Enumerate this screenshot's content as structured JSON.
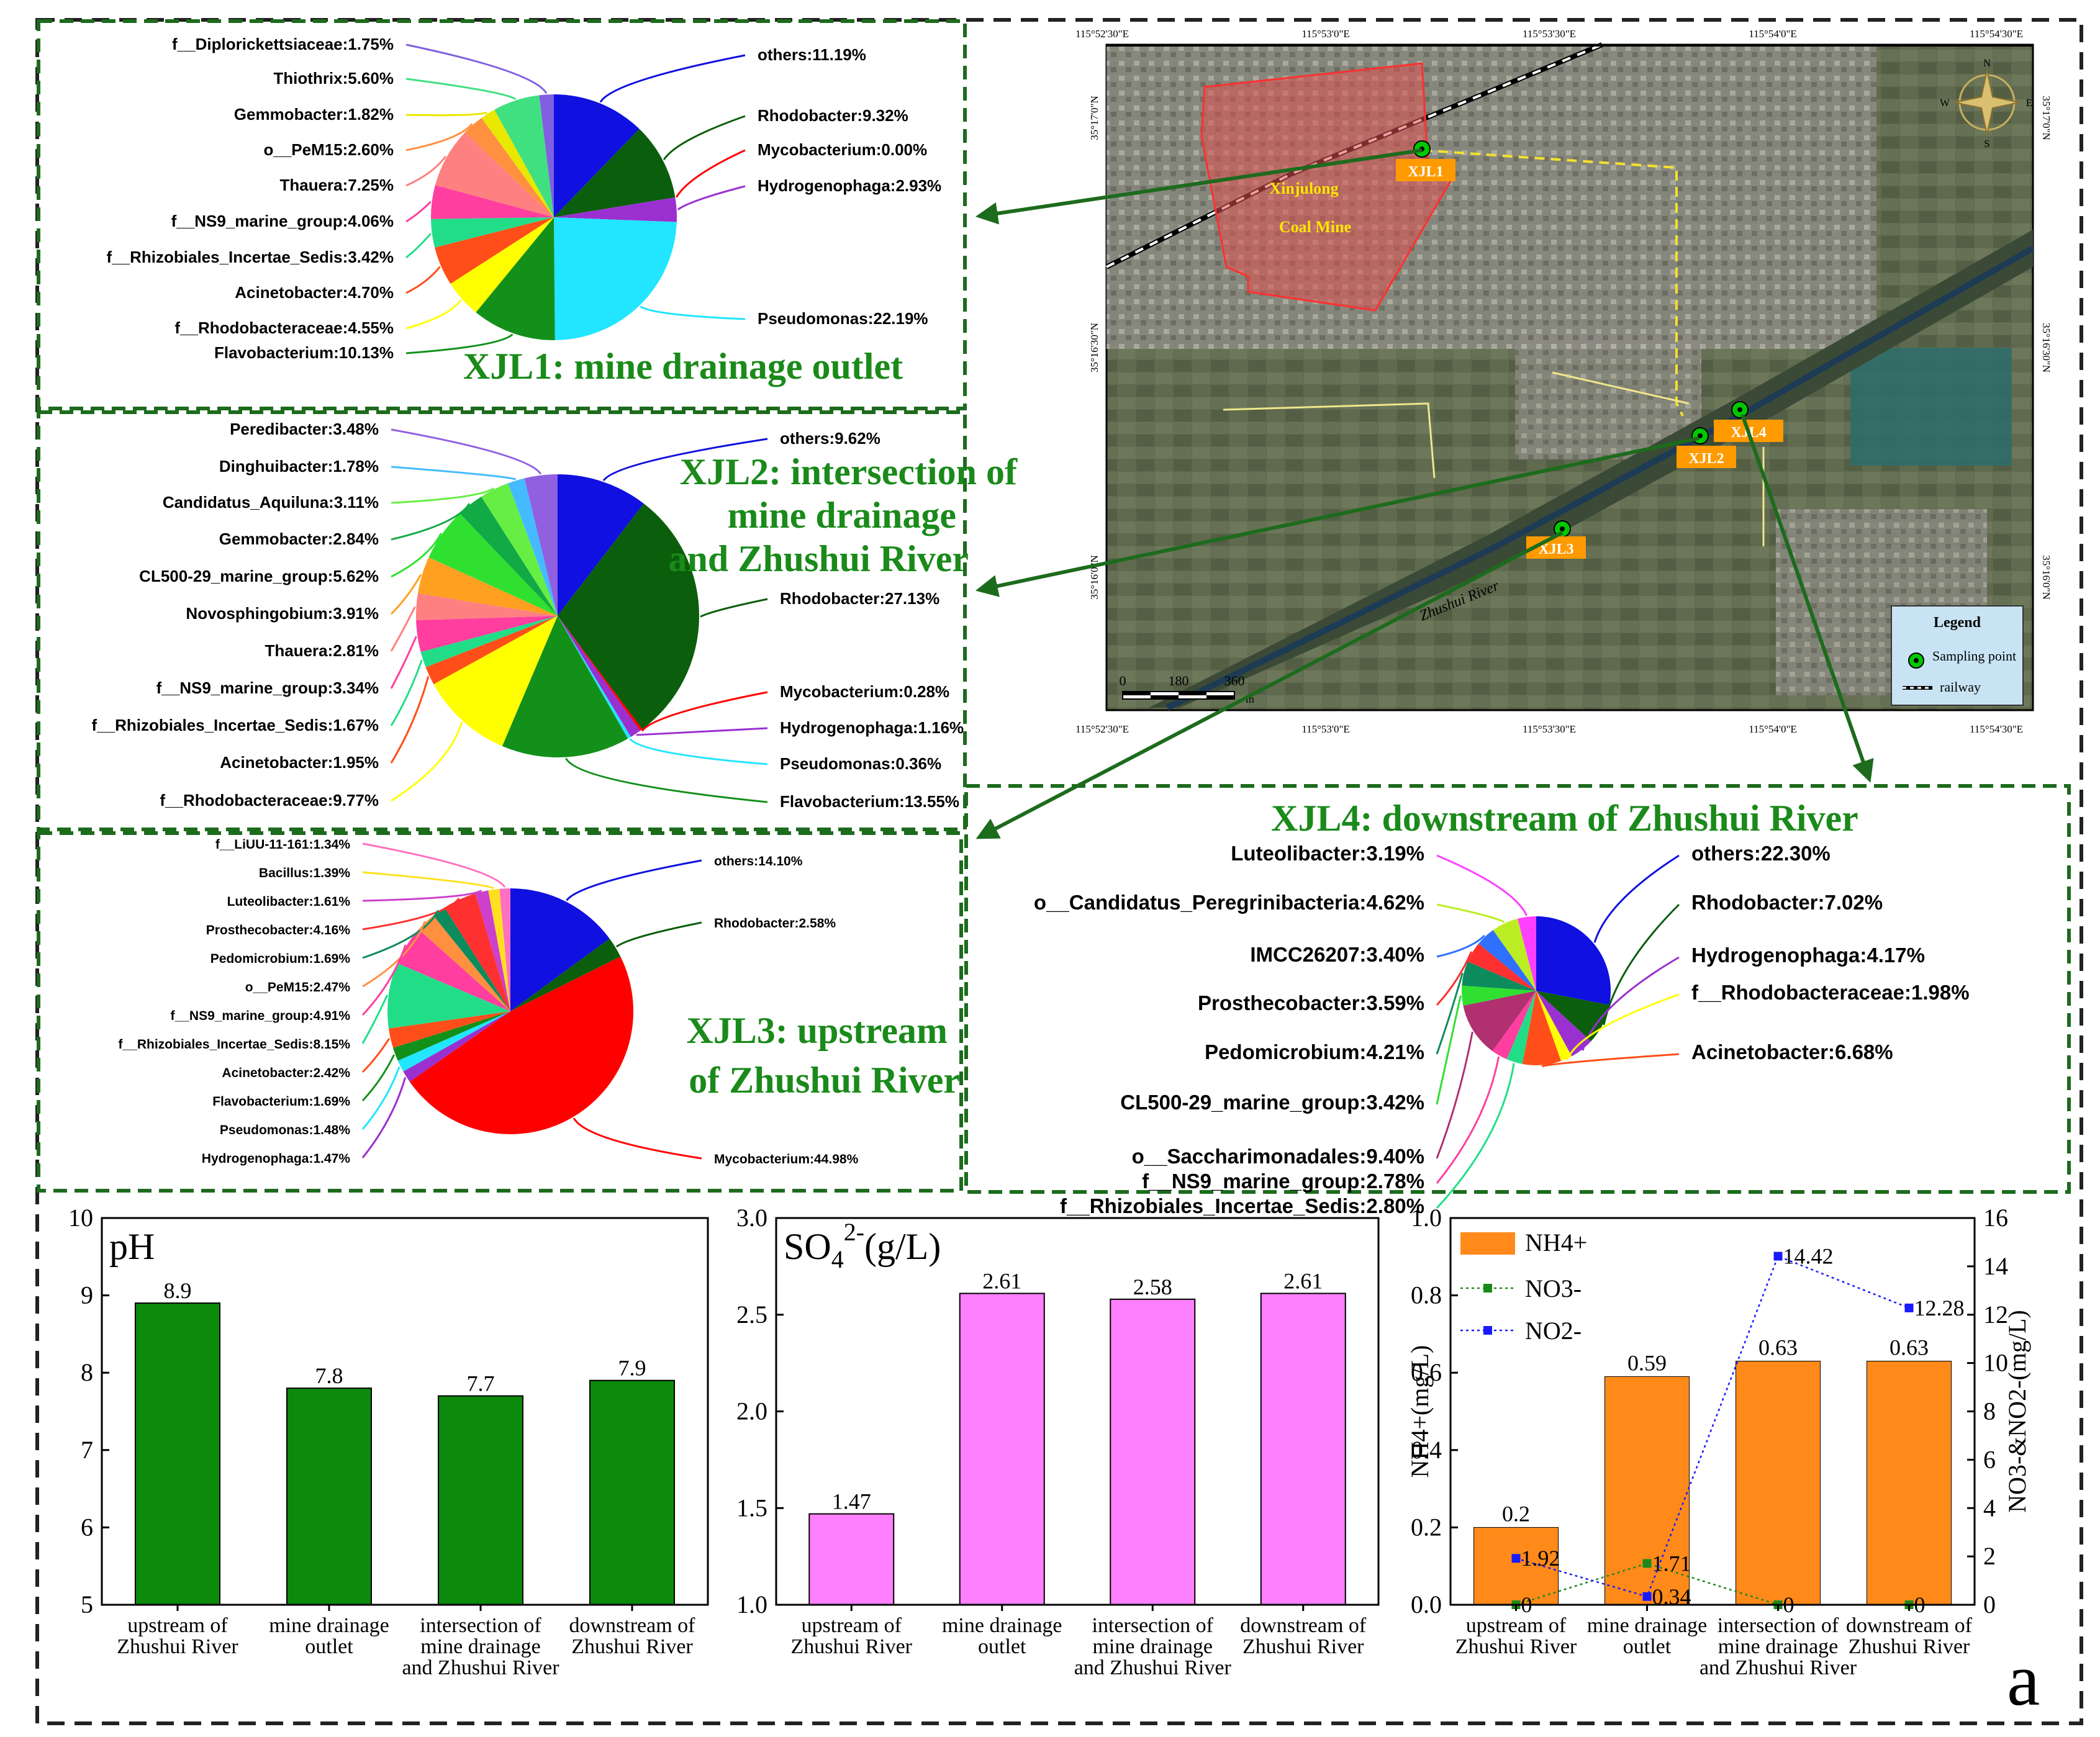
{
  "colors": {
    "dash_green": "#1d6b1d",
    "ph_bar": "#0b8a0b",
    "so4_bar": "#ff80ff",
    "nh4_bar": "#ff8a1a",
    "no3_line": "#1a8a1a",
    "no2_line": "#1a1aff",
    "arrow": "#1d6b1d",
    "title_green": "#1a8a1a"
  },
  "map": {
    "top_ticks": [
      "115°52'30\"E",
      "115°53'0\"E",
      "115°53'30\"E",
      "115°54'0\"E",
      "115°54'30\"E"
    ],
    "bottom_ticks": [
      "115°52'30\"E",
      "115°53'0\"E",
      "115°53'30\"E",
      "115°54'0\"E",
      "115°54'30\"E"
    ],
    "left_ticks": [
      "35°17'0\"N",
      "35°16'30\"N",
      "35°16'0\"N"
    ],
    "right_ticks": [
      "35°17'0\"N",
      "35°16'30\"N",
      "35°16'0\"N"
    ],
    "mine_label_1": "Xinjulong",
    "mine_label_2": "Coal Mine",
    "river_label": "Zhushui River",
    "points": [
      "XJL1",
      "XJL2",
      "XJL3",
      "XJL4"
    ],
    "scale": [
      "0",
      "180",
      "360"
    ],
    "scale_unit": "m",
    "legend_title": "Legend",
    "legend_point": "Sampling point",
    "legend_railway": "railway",
    "compass": [
      "N",
      "S",
      "W",
      "E"
    ]
  },
  "chart_data": [
    {
      "type": "pie",
      "title": "XJL1: mine drainage outlet",
      "slices": [
        {
          "label": "others:11.19%",
          "value": 11.19,
          "color": "#1010e0"
        },
        {
          "label": "Rhodobacter:9.32%",
          "value": 9.32,
          "color": "#0b5e0b"
        },
        {
          "label": "Mycobacterium:0.00%",
          "value": 0.0,
          "color": "#ff0000"
        },
        {
          "label": "Hydrogenophaga:2.93%",
          "value": 2.93,
          "color": "#9a30d0"
        },
        {
          "label": "Pseudomonas:22.19%",
          "value": 22.19,
          "color": "#22e5ff"
        },
        {
          "label": "Flavobacterium:10.13%",
          "value": 10.13,
          "color": "#12901a"
        },
        {
          "label": "f__Rhodobacteraceae:4.55%",
          "value": 4.55,
          "color": "#ffff00"
        },
        {
          "label": "Acinetobacter:4.70%",
          "value": 4.7,
          "color": "#ff4e1a"
        },
        {
          "label": "f__Rhizobiales_Incertae_Sedis:3.42%",
          "value": 3.42,
          "color": "#22dd88"
        },
        {
          "label": "f__NS9_marine_group:4.06%",
          "value": 4.06,
          "color": "#ff3ea0"
        },
        {
          "label": "Thauera:7.25%",
          "value": 7.25,
          "color": "#ff8080"
        },
        {
          "label": "o__PeM15:2.60%",
          "value": 2.6,
          "color": "#ff9040"
        },
        {
          "label": "Gemmobacter:1.82%",
          "value": 1.82,
          "color": "#e8e800"
        },
        {
          "label": "Thiothrix:5.60%",
          "value": 5.6,
          "color": "#40e080"
        },
        {
          "label": "f__Diplorickettsiaceae:1.75%",
          "value": 1.75,
          "color": "#8060e0"
        }
      ]
    },
    {
      "type": "pie",
      "title_lines": [
        "XJL2: intersection of",
        "mine drainage",
        "and Zhushui River"
      ],
      "slices": [
        {
          "label": "others:9.62%",
          "value": 9.62,
          "color": "#1010e0"
        },
        {
          "label": "Rhodobacter:27.13%",
          "value": 27.13,
          "color": "#0b5e0b"
        },
        {
          "label": "Mycobacterium:0.28%",
          "value": 0.28,
          "color": "#ff0000"
        },
        {
          "label": "Hydrogenophaga:1.16%",
          "value": 1.16,
          "color": "#9a30d0"
        },
        {
          "label": "Pseudomonas:0.36%",
          "value": 0.36,
          "color": "#22e5ff"
        },
        {
          "label": "Flavobacterium:13.55%",
          "value": 13.55,
          "color": "#12901a"
        },
        {
          "label": "f__Rhodobacteraceae:9.77%",
          "value": 9.77,
          "color": "#ffff00"
        },
        {
          "label": "Acinetobacter:1.95%",
          "value": 1.95,
          "color": "#ff4e1a"
        },
        {
          "label": "f__Rhizobiales_Incertae_Sedis:1.67%",
          "value": 1.67,
          "color": "#22dd88"
        },
        {
          "label": "f__NS9_marine_group:3.34%",
          "value": 3.34,
          "color": "#ff3ea0"
        },
        {
          "label": "Thauera:2.81%",
          "value": 2.81,
          "color": "#ff8080"
        },
        {
          "label": "Novosphingobium:3.91%",
          "value": 3.91,
          "color": "#ffa020"
        },
        {
          "label": "CL500-29_marine_group:5.62%",
          "value": 5.62,
          "color": "#30e030"
        },
        {
          "label": "Gemmobacter:2.84%",
          "value": 2.84,
          "color": "#11aa44"
        },
        {
          "label": "Candidatus_Aquiluna:3.11%",
          "value": 3.11,
          "color": "#66ee44"
        },
        {
          "label": "Dinghuibacter:1.78%",
          "value": 1.78,
          "color": "#44bbff"
        },
        {
          "label": "Peredibacter:3.48%",
          "value": 3.48,
          "color": "#9060e0"
        }
      ]
    },
    {
      "type": "pie",
      "title_lines": [
        "XJL3: upstream",
        "of Zhushui River"
      ],
      "slices": [
        {
          "label": "others:14.10%",
          "value": 14.1,
          "color": "#1010e0"
        },
        {
          "label": "Rhodobacter:2.58%",
          "value": 2.58,
          "color": "#0b5e0b"
        },
        {
          "label": "Mycobacterium:44.98%",
          "value": 44.98,
          "color": "#ff0000"
        },
        {
          "label": "Hydrogenophaga:1.47%",
          "value": 1.47,
          "color": "#9a30d0"
        },
        {
          "label": "Pseudomonas:1.48%",
          "value": 1.48,
          "color": "#22e5ff"
        },
        {
          "label": "Flavobacterium:1.69%",
          "value": 1.69,
          "color": "#12901a"
        },
        {
          "label": "Acinetobacter:2.42%",
          "value": 2.42,
          "color": "#ff4e1a"
        },
        {
          "label": "f__Rhizobiales_Incertae_Sedis:8.15%",
          "value": 8.15,
          "color": "#22dd88"
        },
        {
          "label": "f__NS9_marine_group:4.91%",
          "value": 4.91,
          "color": "#ff3ea0"
        },
        {
          "label": "o__PeM15:2.47%",
          "value": 2.47,
          "color": "#ff9040"
        },
        {
          "label": "Pedomicrobium:1.69%",
          "value": 1.69,
          "color": "#0c8c5c"
        },
        {
          "label": "Prosthecobacter:4.16%",
          "value": 4.16,
          "color": "#ff3030"
        },
        {
          "label": "Luteolibacter:1.61%",
          "value": 1.61,
          "color": "#cc40cc"
        },
        {
          "label": "Bacillus:1.39%",
          "value": 1.39,
          "color": "#ffe020"
        },
        {
          "label": "f__LiUU-11-161:1.34%",
          "value": 1.34,
          "color": "#ff70c0"
        }
      ]
    },
    {
      "type": "pie",
      "title": "XJL4: downstream of Zhushui River",
      "slices": [
        {
          "label": "others:22.30%",
          "value": 22.3,
          "color": "#1010e0"
        },
        {
          "label": "Rhodobacter:7.02%",
          "value": 7.02,
          "color": "#0b5e0b"
        },
        {
          "label": "Hydrogenophaga:4.17%",
          "value": 4.17,
          "color": "#9a30d0"
        },
        {
          "label": "f__Rhodobacteraceae:1.98%",
          "value": 1.98,
          "color": "#ffff00"
        },
        {
          "label": "Acinetobacter:6.68%",
          "value": 6.68,
          "color": "#ff4e1a"
        },
        {
          "label": "f__Rhizobiales_Incertae_Sedis:2.80%",
          "value": 2.8,
          "color": "#22dd88"
        },
        {
          "label": "f__NS9_marine_group:2.78%",
          "value": 2.78,
          "color": "#ff3ea0"
        },
        {
          "label": "o__Saccharimonadales:9.40%",
          "value": 9.4,
          "color": "#b03070"
        },
        {
          "label": "CL500-29_marine_group:3.42%",
          "value": 3.42,
          "color": "#30e030"
        },
        {
          "label": "Pedomicrobium:4.21%",
          "value": 4.21,
          "color": "#0c8c5c"
        },
        {
          "label": "Prosthecobacter:3.59%",
          "value": 3.59,
          "color": "#ff3030"
        },
        {
          "label": "IMCC26207:3.40%",
          "value": 3.4,
          "color": "#3070ff"
        },
        {
          "label": "o__Candidatus_Peregrinibacteria:4.62%",
          "value": 4.62,
          "color": "#bbee22"
        },
        {
          "label": "Luteolibacter:3.19%",
          "value": 3.19,
          "color": "#ff40ff"
        }
      ]
    },
    {
      "type": "bar",
      "title": "pH",
      "categories": [
        "upstream of|Zhushui River",
        "mine drainage|outlet",
        "intersection of|mine drainage|and Zhushui River",
        "downstream of|Zhushui River"
      ],
      "values": [
        8.9,
        7.8,
        7.7,
        7.9
      ],
      "value_labels": [
        "8.9",
        "7.8",
        "7.7",
        "7.9"
      ],
      "ylim": [
        5,
        10
      ],
      "yticks": [
        "5",
        "6",
        "7",
        "8",
        "9",
        "10"
      ]
    },
    {
      "type": "bar",
      "title": "SO4 2-(g/L)",
      "categories": [
        "upstream of|Zhushui River",
        "mine drainage|outlet",
        "intersection of|mine drainage|and Zhushui River",
        "downstream of|Zhushui River"
      ],
      "values": [
        1.47,
        2.61,
        2.58,
        2.61
      ],
      "value_labels": [
        "1.47",
        "2.61",
        "2.58",
        "2.61"
      ],
      "ylim": [
        1.0,
        3.0
      ],
      "yticks": [
        "1.0",
        "1.5",
        "2.0",
        "2.5",
        "3.0"
      ]
    },
    {
      "type": "bar",
      "categories": [
        "upstream of|Zhushui River",
        "mine drainage|outlet",
        "intersection of|mine drainage|and Zhushui River",
        "downstream of|Zhushui River"
      ],
      "ylabel": "NH4+(mg/L)",
      "ylabel_right": "NO3-&NO2-(mg/L)",
      "ylim": [
        0.0,
        1.0
      ],
      "ylim_right": [
        0,
        16
      ],
      "yticks": [
        "0.0",
        "0.2",
        "0.4",
        "0.6",
        "0.8",
        "1.0"
      ],
      "yticks_right": [
        "0",
        "2",
        "4",
        "6",
        "8",
        "10",
        "12",
        "14",
        "16"
      ],
      "legend": [
        "NH4+",
        "NO3-",
        "NO2-"
      ],
      "series": [
        {
          "name": "NH4+",
          "values": [
            0.2,
            0.59,
            0.63,
            0.63
          ],
          "labels": [
            "0.2",
            "0.59",
            "0.63",
            "0.63"
          ]
        },
        {
          "name": "NO3-",
          "values": [
            0,
            1.71,
            0,
            0
          ],
          "labels": [
            "0",
            "1.71",
            "0",
            "0"
          ]
        },
        {
          "name": "NO2-",
          "values": [
            1.92,
            0.34,
            14.42,
            12.28
          ],
          "labels": [
            "1.92",
            "0.34",
            "14.42",
            "12.28"
          ]
        }
      ]
    }
  ],
  "panel_letter": "a"
}
